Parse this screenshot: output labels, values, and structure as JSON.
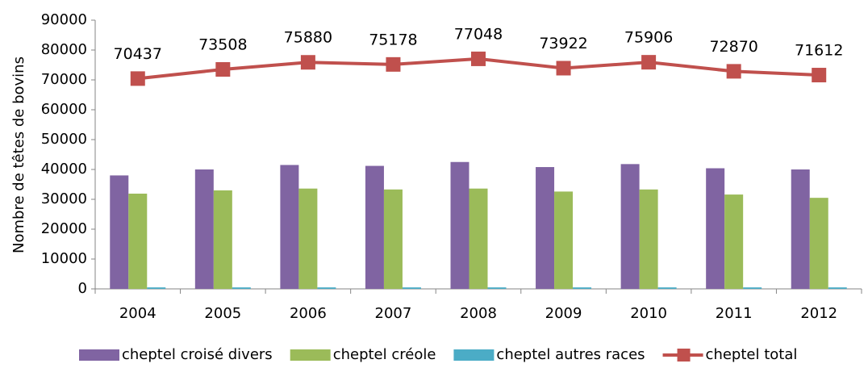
{
  "chart_data": {
    "type": "bar",
    "y_label": "Nombre de têtes de bovins",
    "categories": [
      "2004",
      "2005",
      "2006",
      "2007",
      "2008",
      "2009",
      "2010",
      "2011",
      "2012"
    ],
    "series": [
      {
        "name": "cheptel croisé divers",
        "color": "#8064a2",
        "type": "bar",
        "values": [
          38000,
          40000,
          41500,
          41200,
          42500,
          40800,
          41800,
          40400,
          40000
        ]
      },
      {
        "name": "cheptel créole",
        "color": "#9bbb59",
        "type": "bar",
        "values": [
          31900,
          33000,
          33600,
          33300,
          33600,
          32600,
          33300,
          31600,
          30500
        ]
      },
      {
        "name": "cheptel autres races",
        "color": "#4bacc6",
        "type": "bar",
        "values": [
          500,
          500,
          500,
          500,
          500,
          500,
          500,
          500,
          500
        ]
      },
      {
        "name": "cheptel total",
        "color": "#c0504d",
        "type": "line",
        "values": [
          70437,
          73508,
          75880,
          75178,
          77048,
          73922,
          75906,
          72870,
          71612
        ]
      }
    ],
    "ylim": [
      0,
      90000
    ],
    "yticks": [
      0,
      10000,
      20000,
      30000,
      40000,
      50000,
      60000,
      70000,
      80000,
      90000
    ],
    "grid": false,
    "legend": "bottom"
  }
}
